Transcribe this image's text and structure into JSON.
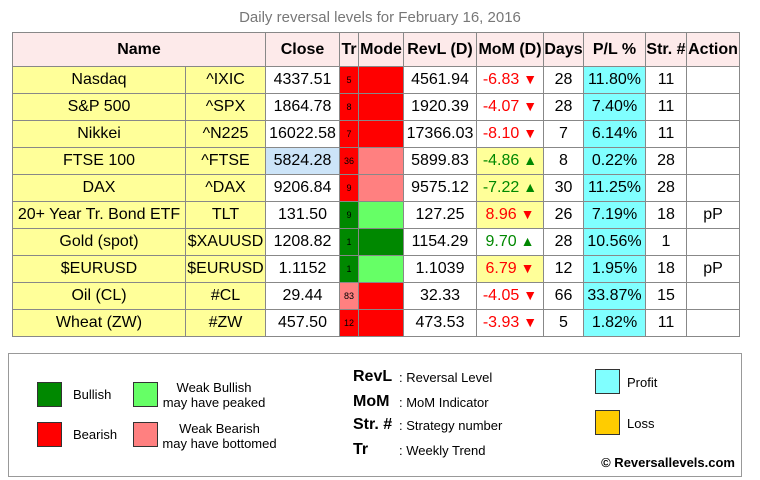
{
  "title": "Daily reversal levels for February 16, 2016",
  "headers": {
    "name": "Name",
    "close": "Close",
    "tr": "Tr",
    "mode": "Mode",
    "revl": "RevL (D)",
    "mom": "MoM (D)",
    "days": "Days",
    "pl": "P/L %",
    "str": "Str. #",
    "action": "Action"
  },
  "colors": {
    "bullish": "#008800",
    "weak_bullish": "#66ff66",
    "bearish": "#ff0000",
    "weak_bearish": "#ff8080",
    "profit": "#80ffff",
    "loss": "#ffcc00"
  },
  "rows": [
    {
      "name": "Nasdaq",
      "ticker": "^IXIC",
      "close": "4337.51",
      "tr": "5",
      "tr_state": "bearish",
      "mode": "bearish",
      "revl": "4561.94",
      "mom": "-6.83",
      "mom_dir": "down",
      "mom_weak": false,
      "days": "28",
      "pl": "11.80%",
      "str": "11",
      "action": ""
    },
    {
      "name": "S&P 500",
      "ticker": "^SPX",
      "close": "1864.78",
      "tr": "8",
      "tr_state": "bearish",
      "mode": "bearish",
      "revl": "1920.39",
      "mom": "-4.07",
      "mom_dir": "down",
      "mom_weak": false,
      "days": "28",
      "pl": "7.40%",
      "str": "11",
      "action": ""
    },
    {
      "name": "Nikkei",
      "ticker": "^N225",
      "close": "16022.58",
      "tr": "7",
      "tr_state": "bearish",
      "mode": "bearish",
      "revl": "17366.03",
      "mom": "-8.10",
      "mom_dir": "down",
      "mom_weak": false,
      "days": "7",
      "pl": "6.14%",
      "str": "11",
      "action": ""
    },
    {
      "name": "FTSE 100",
      "ticker": "^FTSE",
      "close": "5824.28",
      "close_hl": true,
      "tr": "36",
      "tr_state": "bearish",
      "mode": "weak_bearish",
      "revl": "5899.83",
      "mom": "-4.86",
      "mom_dir": "up",
      "mom_weak": true,
      "days": "8",
      "pl": "0.22%",
      "str": "28",
      "action": ""
    },
    {
      "name": "DAX",
      "ticker": "^DAX",
      "close": "9206.84",
      "tr": "9",
      "tr_state": "bearish",
      "mode": "weak_bearish",
      "revl": "9575.12",
      "mom": "-7.22",
      "mom_dir": "up",
      "mom_weak": true,
      "days": "30",
      "pl": "11.25%",
      "str": "28",
      "action": ""
    },
    {
      "name": "20+ Year Tr. Bond ETF",
      "ticker": "TLT",
      "close": "131.50",
      "tr": "9",
      "tr_state": "bullish",
      "mode": "weak_bullish",
      "revl": "127.25",
      "mom": "8.96",
      "mom_dir": "down",
      "mom_weak": true,
      "days": "26",
      "pl": "7.19%",
      "str": "18",
      "action": "pP"
    },
    {
      "name": "Gold (spot)",
      "ticker": "$XAUUSD",
      "close": "1208.82",
      "tr": "1",
      "tr_state": "bullish",
      "mode": "bullish",
      "revl": "1154.29",
      "mom": "9.70",
      "mom_dir": "up",
      "mom_weak": false,
      "days": "28",
      "pl": "10.56%",
      "str": "1",
      "action": ""
    },
    {
      "name": "$EURUSD",
      "ticker": "$EURUSD",
      "close": "1.1152",
      "tr": "1",
      "tr_state": "bullish",
      "mode": "weak_bullish",
      "revl": "1.1039",
      "mom": "6.79",
      "mom_dir": "down",
      "mom_weak": true,
      "days": "12",
      "pl": "1.95%",
      "str": "18",
      "action": "pP"
    },
    {
      "name": "Oil (CL)",
      "ticker": "#CL",
      "close": "29.44",
      "tr": "83",
      "tr_state": "weak_bearish",
      "mode": "bearish",
      "revl": "32.33",
      "mom": "-4.05",
      "mom_dir": "down",
      "mom_weak": false,
      "days": "66",
      "pl": "33.87%",
      "str": "15",
      "action": ""
    },
    {
      "name": "Wheat (ZW)",
      "ticker": "#ZW",
      "close": "457.50",
      "tr": "12",
      "tr_state": "bearish",
      "mode": "bearish",
      "revl": "473.53",
      "mom": "-3.93",
      "mom_dir": "down",
      "mom_weak": false,
      "days": "5",
      "pl": "1.82%",
      "str": "11",
      "action": ""
    }
  ],
  "legend": {
    "bullish": "Bullish",
    "bearish": "Bearish",
    "weak_bullish_1": "Weak Bullish",
    "weak_bullish_2": "may have peaked",
    "weak_bearish_1": "Weak Bearish",
    "weak_bearish_2": "may have bottomed",
    "abbr": [
      {
        "k": "RevL",
        "v": ": Reversal Level"
      },
      {
        "k": "MoM",
        "v": ": MoM Indicator"
      },
      {
        "k": "Str. #",
        "v": ": Strategy number"
      },
      {
        "k": "Tr",
        "v": ": Weekly Trend"
      }
    ],
    "profit": "Profit",
    "loss": "Loss",
    "copyright": "© Reversallevels.com"
  }
}
